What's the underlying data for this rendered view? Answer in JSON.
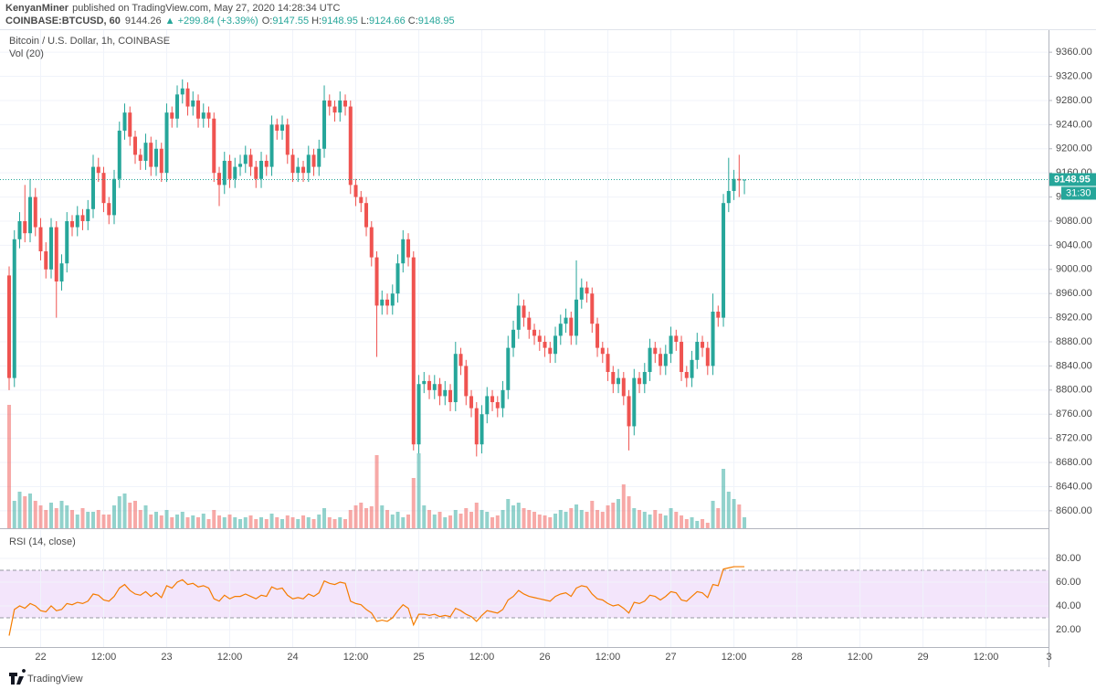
{
  "header": {
    "author": "KenyanMiner",
    "published": "published on TradingView.com, May 27, 2020 14:28:34 UTC",
    "symbol": "COINBASE:BTCUSD, 60",
    "last": "9144.26",
    "change": "▲ +299.84 (+3.39%)",
    "labels": [
      "O:",
      "H:",
      "L:",
      "C:"
    ]
  },
  "footer": {
    "brand": "TradingView"
  },
  "chart_data": {
    "type": "candlestick",
    "title": "Bitcoin / U.S. Dollar, 1h, COINBASE",
    "volume_label": "Vol (20)",
    "countdown": "31:30",
    "up_color": "#26a69a",
    "down_color": "#ef5350",
    "grid": true,
    "xlim": [
      -1.74,
      197.9
    ],
    "ylim": [
      8571,
      9389
    ],
    "yticks": [
      {
        "value": 9360,
        "label": "9360.00"
      },
      {
        "value": 9320,
        "label": "9320.00"
      },
      {
        "value": 9280,
        "label": "9280.00"
      },
      {
        "value": 9240,
        "label": "9240.00"
      },
      {
        "value": 9200,
        "label": "9200.00"
      },
      {
        "value": 9160,
        "label": "9160.00"
      },
      {
        "value": 9120,
        "label": "9120.00"
      },
      {
        "value": 9080,
        "label": "9080.00"
      },
      {
        "value": 9040,
        "label": "9040.00"
      },
      {
        "value": 9000,
        "label": "9000.00"
      },
      {
        "value": 8960,
        "label": "8960.00"
      },
      {
        "value": 8920,
        "label": "8920.00"
      },
      {
        "value": 8880,
        "label": "8880.00"
      },
      {
        "value": 8840,
        "label": "8840.00"
      },
      {
        "value": 8800,
        "label": "8800.00"
      },
      {
        "value": 8760,
        "label": "8760.00"
      },
      {
        "value": 8720,
        "label": "8720.00"
      },
      {
        "value": 8680,
        "label": "8680.00"
      },
      {
        "value": 8640,
        "label": "8640.00"
      },
      {
        "value": 8600,
        "label": "8600.00"
      }
    ],
    "xticks": [
      {
        "value": 6,
        "label": "22"
      },
      {
        "value": 18,
        "label": "12:00"
      },
      {
        "value": 30,
        "label": "23"
      },
      {
        "value": 42,
        "label": "12:00"
      },
      {
        "value": 54,
        "label": "24"
      },
      {
        "value": 66,
        "label": "12:00"
      },
      {
        "value": 78,
        "label": "25"
      },
      {
        "value": 90,
        "label": "12:00"
      },
      {
        "value": 102,
        "label": "26"
      },
      {
        "value": 114,
        "label": "12:00"
      },
      {
        "value": 126,
        "label": "27"
      },
      {
        "value": 138,
        "label": "12:00"
      },
      {
        "value": 150,
        "label": "28"
      },
      {
        "value": 162,
        "label": "12:00"
      },
      {
        "value": 174,
        "label": "29"
      },
      {
        "value": 186,
        "label": "12:00"
      },
      {
        "value": 198,
        "label": "3"
      }
    ],
    "open": [
      8990,
      8820,
      9050,
      9080,
      9060,
      9120,
      9070,
      9030,
      9000,
      9070,
      8980,
      9010,
      9080,
      9070,
      9090,
      9080,
      9100,
      9170,
      9160,
      9110,
      9090,
      9150,
      9230,
      9260,
      9220,
      9190,
      9180,
      9210,
      9170,
      9200,
      9160,
      9260,
      9250,
      9290,
      9300,
      9270,
      9280,
      9250,
      9260,
      9250,
      9160,
      9140,
      9180,
      9150,
      9170,
      9175,
      9190,
      9170,
      9150,
      9180,
      9170,
      9240,
      9230,
      9240,
      9190,
      9160,
      9170,
      9160,
      9190,
      9170,
      9200,
      9280,
      9270,
      9260,
      9280,
      9270,
      9140,
      9120,
      9110,
      9070,
      9020,
      8940,
      8950,
      8940,
      8960,
      9010,
      9050,
      9020,
      8710,
      8810,
      8815,
      8800,
      8810,
      8790,
      8800,
      8780,
      8860,
      8840,
      8790,
      8770,
      8710,
      8760,
      8790,
      8780,
      8770,
      8800,
      8870,
      8900,
      8940,
      8920,
      8900,
      8890,
      8880,
      8870,
      8860,
      8890,
      8910,
      8920,
      8890,
      8950,
      8970,
      8960,
      8910,
      8870,
      8860,
      8830,
      8810,
      8820,
      8790,
      8740,
      8820,
      8810,
      8830,
      8870,
      8860,
      8840,
      8860,
      8890,
      8880,
      8830,
      8820,
      8850,
      8880,
      8870,
      8840,
      8930,
      8920,
      9110,
      9130,
      9150,
      9147.55
    ],
    "high": [
      9005,
      9065,
      9095,
      9140,
      9150,
      9135,
      9085,
      9045,
      9085,
      9080,
      9025,
      9095,
      9090,
      9105,
      9100,
      9115,
      9190,
      9185,
      9170,
      9120,
      9165,
      9245,
      9275,
      9270,
      9230,
      9200,
      9225,
      9220,
      9215,
      9210,
      9275,
      9270,
      9305,
      9315,
      9310,
      9295,
      9290,
      9275,
      9270,
      9260,
      9170,
      9195,
      9190,
      9185,
      9190,
      9205,
      9200,
      9180,
      9195,
      9190,
      9255,
      9250,
      9255,
      9250,
      9200,
      9185,
      9180,
      9205,
      9200,
      9215,
      9305,
      9290,
      9280,
      9295,
      9290,
      9280,
      9150,
      9130,
      9120,
      9080,
      9030,
      8965,
      8960,
      8975,
      9025,
      9065,
      9060,
      9030,
      8825,
      8830,
      8825,
      8825,
      8820,
      8815,
      8810,
      8880,
      8870,
      8850,
      8800,
      8780,
      8775,
      8805,
      8800,
      8790,
      8815,
      8890,
      8915,
      8960,
      8950,
      8930,
      8910,
      8900,
      8890,
      8880,
      8905,
      8925,
      8935,
      8930,
      9015,
      8985,
      8980,
      8970,
      8920,
      8880,
      8870,
      8840,
      8835,
      8830,
      8800,
      8835,
      8830,
      8845,
      8885,
      8880,
      8870,
      8875,
      8905,
      8900,
      8890,
      8840,
      8865,
      8895,
      8890,
      8880,
      8960,
      8940,
      9125,
      9185,
      9165,
      9190,
      9148.95
    ],
    "low": [
      8800,
      8805,
      9035,
      9045,
      9045,
      9055,
      9015,
      8985,
      8985,
      8920,
      8965,
      8995,
      9055,
      9055,
      9065,
      9065,
      9085,
      9145,
      9095,
      9075,
      9075,
      9135,
      9215,
      9205,
      9175,
      9165,
      9165,
      9155,
      9155,
      9145,
      9145,
      9235,
      9235,
      9275,
      9255,
      9255,
      9235,
      9235,
      9235,
      9145,
      9105,
      9125,
      9135,
      9135,
      9155,
      9160,
      9155,
      9135,
      9135,
      9155,
      9155,
      9215,
      9215,
      9175,
      9145,
      9145,
      9145,
      9145,
      9155,
      9155,
      9185,
      9255,
      9245,
      9245,
      9255,
      9125,
      9105,
      9095,
      9055,
      9005,
      8855,
      8925,
      8925,
      8925,
      8945,
      8995,
      9005,
      8700,
      8695,
      8795,
      8785,
      8785,
      8775,
      8775,
      8765,
      8765,
      8825,
      8775,
      8755,
      8690,
      8695,
      8745,
      8765,
      8755,
      8755,
      8785,
      8855,
      8885,
      8905,
      8885,
      8875,
      8865,
      8855,
      8845,
      8845,
      8875,
      8895,
      8875,
      8875,
      8935,
      8945,
      8895,
      8855,
      8845,
      8815,
      8795,
      8795,
      8775,
      8700,
      8725,
      8795,
      8795,
      8815,
      8845,
      8825,
      8825,
      8845,
      8865,
      8815,
      8805,
      8805,
      8835,
      8855,
      8825,
      8825,
      8905,
      8905,
      9095,
      9115,
      9120,
      9124.66
    ],
    "close": [
      8820,
      9050,
      9080,
      9060,
      9120,
      9070,
      9030,
      9000,
      9070,
      8980,
      9010,
      9080,
      9070,
      9090,
      9080,
      9100,
      9170,
      9160,
      9110,
      9090,
      9150,
      9230,
      9260,
      9220,
      9190,
      9180,
      9210,
      9170,
      9200,
      9160,
      9260,
      9250,
      9290,
      9300,
      9270,
      9280,
      9250,
      9260,
      9250,
      9160,
      9140,
      9180,
      9150,
      9170,
      9175,
      9190,
      9170,
      9150,
      9180,
      9170,
      9240,
      9230,
      9240,
      9190,
      9160,
      9170,
      9160,
      9190,
      9170,
      9200,
      9280,
      9270,
      9260,
      9280,
      9270,
      9140,
      9120,
      9110,
      9070,
      9020,
      8940,
      8950,
      8940,
      8960,
      9010,
      9050,
      9020,
      8710,
      8810,
      8815,
      8800,
      8810,
      8790,
      8800,
      8780,
      8860,
      8840,
      8790,
      8770,
      8710,
      8760,
      8790,
      8780,
      8770,
      8800,
      8870,
      8900,
      8940,
      8920,
      8900,
      8890,
      8880,
      8870,
      8860,
      8890,
      8910,
      8920,
      8890,
      8950,
      8970,
      8960,
      8910,
      8870,
      8860,
      8830,
      8810,
      8820,
      8790,
      8740,
      8820,
      8810,
      8830,
      8870,
      8860,
      8840,
      8860,
      8890,
      8880,
      8830,
      8820,
      8850,
      8880,
      8870,
      8840,
      8930,
      8920,
      9110,
      9130,
      9150,
      9147.55,
      9148.95
    ],
    "volume": [
      135,
      30,
      40,
      35,
      38,
      30,
      25,
      20,
      28,
      22,
      30,
      25,
      20,
      15,
      22,
      18,
      18,
      20,
      15,
      15,
      25,
      35,
      38,
      28,
      30,
      20,
      25,
      15,
      18,
      14,
      20,
      12,
      15,
      18,
      12,
      14,
      12,
      16,
      10,
      20,
      14,
      12,
      15,
      12,
      10,
      12,
      14,
      10,
      12,
      10,
      16,
      12,
      10,
      14,
      12,
      10,
      14,
      12,
      10,
      15,
      22,
      12,
      10,
      12,
      10,
      20,
      25,
      28,
      22,
      24,
      80,
      25,
      20,
      15,
      18,
      12,
      15,
      55,
      82,
      25,
      20,
      15,
      18,
      12,
      14,
      20,
      16,
      22,
      18,
      28,
      20,
      18,
      12,
      14,
      20,
      32,
      25,
      28,
      22,
      20,
      18,
      15,
      14,
      12,
      16,
      20,
      18,
      22,
      26,
      20,
      18,
      30,
      20,
      18,
      25,
      28,
      32,
      48,
      35,
      22,
      20,
      18,
      15,
      20,
      16,
      14,
      22,
      18,
      14,
      10,
      12,
      8,
      10,
      6,
      30,
      22,
      65,
      40,
      32,
      26,
      12
    ],
    "rsi": {
      "label": "RSI (14, close)",
      "color": "#f57c00",
      "band": [
        30,
        70
      ],
      "ylim": [
        5.4,
        103.8
      ],
      "yticks": [
        {
          "value": 80,
          "label": "80.00"
        },
        {
          "value": 60,
          "label": "60.00"
        },
        {
          "value": 40,
          "label": "40.00"
        },
        {
          "value": 20,
          "label": "20.00"
        }
      ],
      "values": [
        15,
        37,
        40,
        38,
        42,
        40,
        36,
        35,
        40,
        36,
        37,
        42,
        41,
        43,
        42,
        44,
        50,
        49,
        45,
        44,
        48,
        55,
        58,
        53,
        50,
        49,
        52,
        48,
        51,
        47,
        57,
        55,
        60,
        62,
        58,
        59,
        56,
        57,
        55,
        46,
        44,
        49,
        46,
        48,
        48,
        50,
        48,
        46,
        49,
        48,
        56,
        54,
        55,
        49,
        46,
        47,
        46,
        50,
        48,
        51,
        61,
        59,
        58,
        60,
        59,
        44,
        42,
        41,
        37,
        34,
        27,
        28,
        27,
        30,
        36,
        41,
        38,
        24,
        33,
        33,
        32,
        33,
        31,
        32,
        31,
        38,
        36,
        33,
        31,
        27,
        32,
        36,
        35,
        34,
        37,
        45,
        48,
        53,
        50,
        48,
        47,
        46,
        45,
        44,
        48,
        50,
        51,
        48,
        55,
        57,
        56,
        50,
        46,
        45,
        42,
        40,
        41,
        38,
        34,
        43,
        42,
        44,
        49,
        48,
        45,
        48,
        52,
        51,
        45,
        44,
        48,
        52,
        51,
        47,
        58,
        57,
        71,
        72,
        73,
        73,
        73
      ]
    }
  }
}
